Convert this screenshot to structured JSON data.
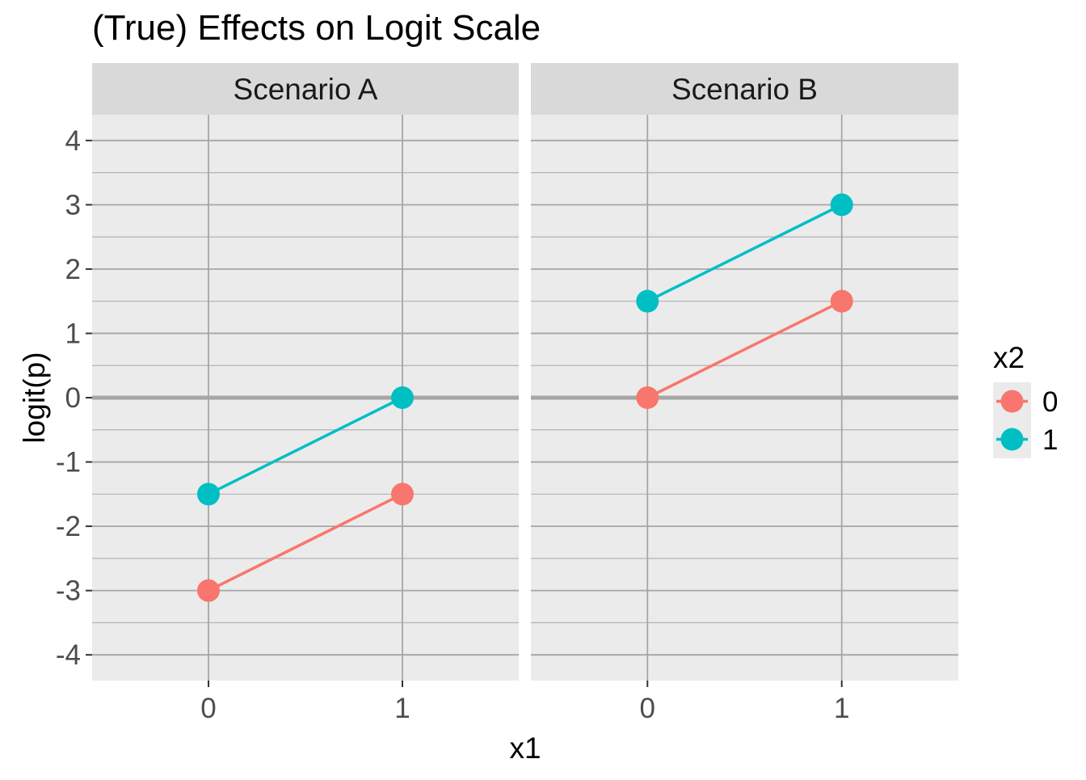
{
  "chart_data": {
    "type": "line",
    "title": "(True) Effects on Logit Scale",
    "xlabel": "x1",
    "ylabel": "logit(p)",
    "x_ticks": [
      "0",
      "1"
    ],
    "y_ticks": [
      "4",
      "3",
      "2",
      "1",
      "0",
      "-1",
      "-2",
      "-3",
      "-4"
    ],
    "xlim": [
      -0.6,
      1.6
    ],
    "ylim": [
      -4.4,
      4.4
    ],
    "grid": true,
    "reference_line_y": 0,
    "legend": {
      "title": "x2",
      "position": "right",
      "entries": [
        {
          "label": "0",
          "color": "#F8766D"
        },
        {
          "label": "1",
          "color": "#00BFC4"
        }
      ]
    },
    "panels": [
      {
        "strip": "Scenario A",
        "series": [
          {
            "x2": "0",
            "color": "#F8766D",
            "x": [
              0,
              1
            ],
            "y": [
              -3,
              -1.5
            ]
          },
          {
            "x2": "1",
            "color": "#00BFC4",
            "x": [
              0,
              1
            ],
            "y": [
              -1.5,
              0
            ]
          }
        ]
      },
      {
        "strip": "Scenario B",
        "series": [
          {
            "x2": "0",
            "color": "#F8766D",
            "x": [
              0,
              1
            ],
            "y": [
              0,
              1.5
            ]
          },
          {
            "x2": "1",
            "color": "#00BFC4",
            "x": [
              0,
              1
            ],
            "y": [
              1.5,
              3
            ]
          }
        ]
      }
    ]
  }
}
